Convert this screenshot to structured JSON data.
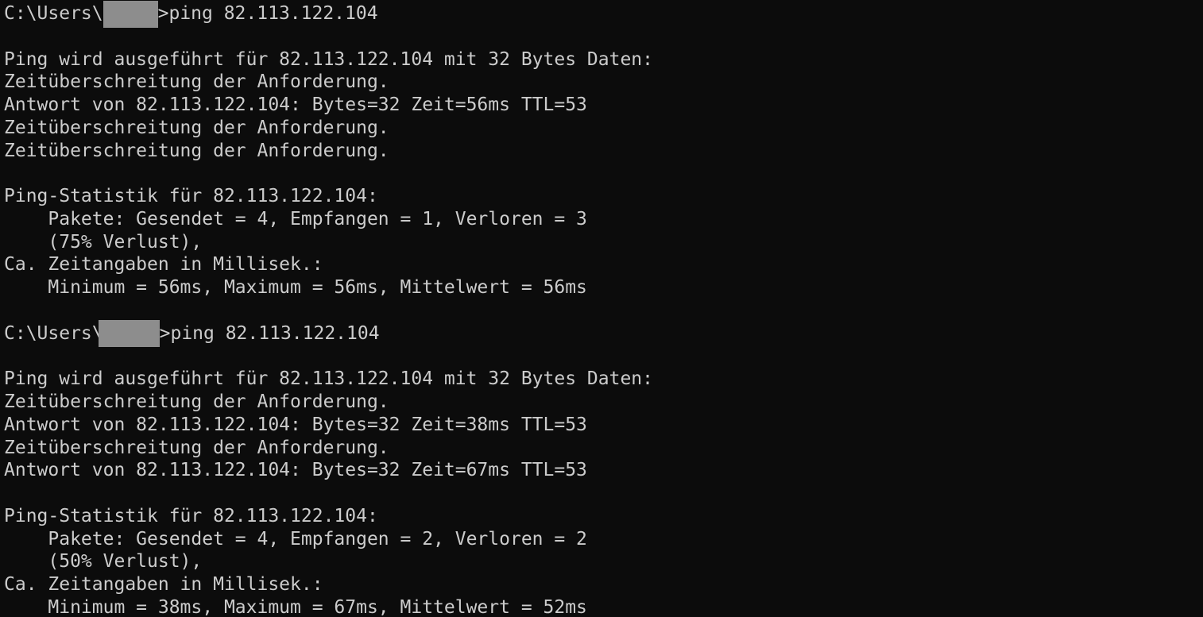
{
  "terminal": {
    "colors": {
      "background": "#0c0c0c",
      "foreground": "#cccccc",
      "redaction_box": "#8d8d8d"
    },
    "target_ip": "82.113.122.104",
    "lines": [
      {
        "kind": "prompt",
        "pre": "C:\\Users\\",
        "username_redacted": true,
        "post": ">ping 82.113.122.104"
      },
      {
        "kind": "blank",
        "text": ""
      },
      {
        "kind": "output",
        "text": "Ping wird ausgeführt für 82.113.122.104 mit 32 Bytes Daten:"
      },
      {
        "kind": "output",
        "text": "Zeitüberschreitung der Anforderung."
      },
      {
        "kind": "output",
        "text": "Antwort von 82.113.122.104: Bytes=32 Zeit=56ms TTL=53"
      },
      {
        "kind": "output",
        "text": "Zeitüberschreitung der Anforderung."
      },
      {
        "kind": "output",
        "text": "Zeitüberschreitung der Anforderung."
      },
      {
        "kind": "blank",
        "text": ""
      },
      {
        "kind": "output",
        "text": "Ping-Statistik für 82.113.122.104:"
      },
      {
        "kind": "output",
        "text": "    Pakete: Gesendet = 4, Empfangen = 1, Verloren = 3"
      },
      {
        "kind": "output",
        "text": "    (75% Verlust),"
      },
      {
        "kind": "output",
        "text": "Ca. Zeitangaben in Millisek.:"
      },
      {
        "kind": "output",
        "text": "    Minimum = 56ms, Maximum = 56ms, Mittelwert = 56ms"
      },
      {
        "kind": "blank",
        "text": ""
      },
      {
        "kind": "prompt",
        "pre": "C:\\Users\\",
        "username_redacted": true,
        "post": ">ping 82.113.122.104"
      },
      {
        "kind": "blank",
        "text": ""
      },
      {
        "kind": "output",
        "text": "Ping wird ausgeführt für 82.113.122.104 mit 32 Bytes Daten:"
      },
      {
        "kind": "output",
        "text": "Zeitüberschreitung der Anforderung."
      },
      {
        "kind": "output",
        "text": "Antwort von 82.113.122.104: Bytes=32 Zeit=38ms TTL=53"
      },
      {
        "kind": "output",
        "text": "Zeitüberschreitung der Anforderung."
      },
      {
        "kind": "output",
        "text": "Antwort von 82.113.122.104: Bytes=32 Zeit=67ms TTL=53"
      },
      {
        "kind": "blank",
        "text": ""
      },
      {
        "kind": "output",
        "text": "Ping-Statistik für 82.113.122.104:"
      },
      {
        "kind": "output",
        "text": "    Pakete: Gesendet = 4, Empfangen = 2, Verloren = 2"
      },
      {
        "kind": "output",
        "text": "    (50% Verlust),"
      },
      {
        "kind": "output",
        "text": "Ca. Zeitangaben in Millisek.:"
      },
      {
        "kind": "output",
        "text": "    Minimum = 38ms, Maximum = 67ms, Mittelwert = 52ms"
      }
    ]
  }
}
